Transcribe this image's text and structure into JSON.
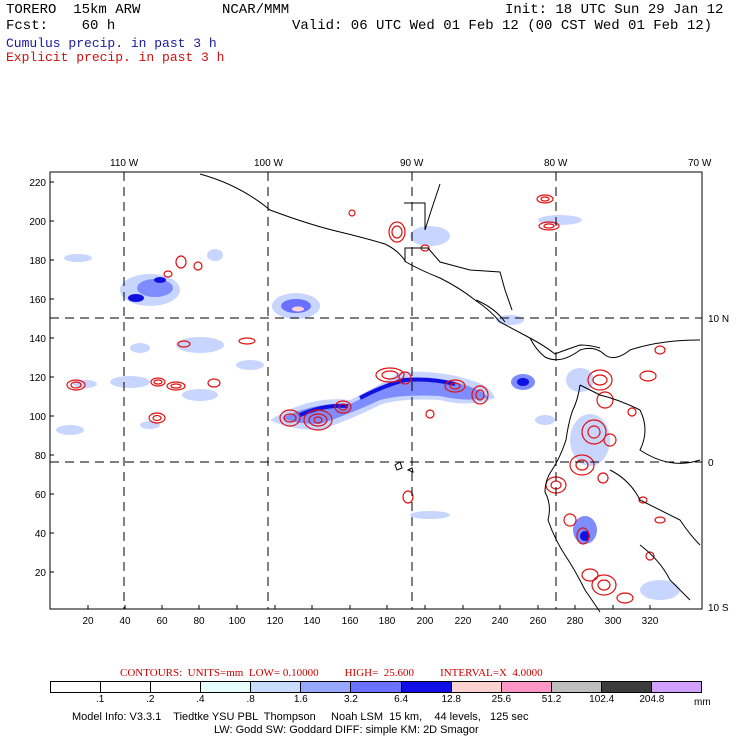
{
  "header": {
    "model_name": "TORERO  15km ARW",
    "org": "NCAR/MMM",
    "init": "Init: 18 UTC Sun 29 Jan 12",
    "fcst": "Fcst:    60 h",
    "valid": "Valid: 06 UTC Wed 01 Feb 12 (00 CST Wed 01 Feb 12)",
    "legend_cumulus": "Cumulus precip. in past 3 h",
    "legend_explicit": "Explicit precip. in past 3 h"
  },
  "map": {
    "lon_labels": [
      "110 W",
      "100 W",
      "90 W",
      "80 W",
      "70 W"
    ],
    "lat_labels": [
      "10 N",
      "0",
      "10 S"
    ],
    "y_grid_labels": [
      "220",
      "200",
      "180",
      "160",
      "140",
      "120",
      "100",
      "80",
      "60",
      "40",
      "20"
    ],
    "x_grid_labels": [
      "20",
      "40",
      "60",
      "80",
      "100",
      "120",
      "140",
      "160",
      "180",
      "200",
      "220",
      "240",
      "260",
      "280",
      "300",
      "320"
    ],
    "colors": {
      "coast": "#000000",
      "grid": "#000000",
      "contour": "#e01010",
      "precip_light": "#c8d6ff",
      "precip_mid": "#7d8cff",
      "precip_dark": "#1010e0"
    }
  },
  "contour_info": {
    "units": "CONTOURS:  UNITS=mm  LOW= 0.10000",
    "high": "HIGH=  25.600",
    "interval": "INTERVAL=X  4.0000"
  },
  "colorbar": {
    "colors": [
      "#ffffff",
      "#ffffff",
      "#ffffff",
      "#e6ffff",
      "#c8dcff",
      "#96a8ff",
      "#6a70ff",
      "#1010e6",
      "#ffd2d2",
      "#ff96c8",
      "#bebebe",
      "#3c3c3c",
      "#d2a0ff"
    ],
    "labels": [
      ".1",
      ".2",
      ".4",
      ".8",
      "1.6",
      "3.2",
      "6.4",
      "12.8",
      "25.6",
      "51.2",
      "102.4",
      "204.8"
    ],
    "unit": "mm"
  },
  "model_info": {
    "line1": "Model Info: V3.3.1    Tiedtke YSU PBL  Thompson     Noah LSM  15 km,    44 levels,   125 sec",
    "line2": "LW: Godd SW: Goddard DIFF: simple KM: 2D Smagor"
  }
}
